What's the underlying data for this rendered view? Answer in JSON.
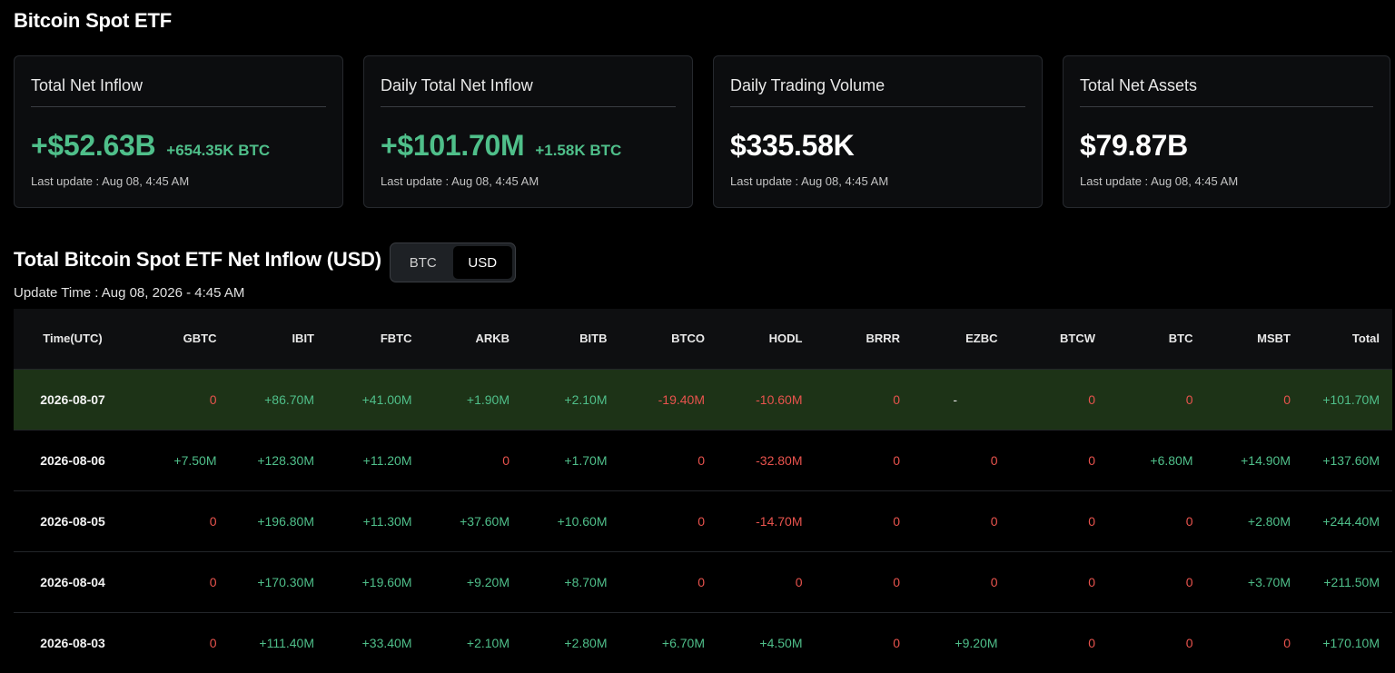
{
  "page": {
    "title": "Bitcoin Spot ETF"
  },
  "cards": [
    {
      "title": "Total Net Inflow",
      "value": "+$52.63B",
      "sub": "+654.35K BTC",
      "update": "Last update : Aug 08, 4:45 AM",
      "positive": true
    },
    {
      "title": "Daily Total Net Inflow",
      "value": "+$101.70M",
      "sub": "+1.58K BTC",
      "update": "Last update : Aug 08, 4:45 AM",
      "positive": true
    },
    {
      "title": "Daily Trading Volume",
      "value": "$335.58K",
      "sub": "",
      "update": "Last update : Aug 08, 4:45 AM",
      "positive": false
    },
    {
      "title": "Total Net Assets",
      "value": "$79.87B",
      "sub": "",
      "update": "Last update : Aug 08, 4:45 AM",
      "positive": false
    }
  ],
  "section": {
    "title": "Total Bitcoin Spot ETF Net Inflow (USD)",
    "update_time": "Update Time : Aug 08, 2026 - 4:45 AM",
    "toggle": {
      "options": [
        "BTC",
        "USD"
      ],
      "selected": "USD"
    }
  },
  "table": {
    "headers": [
      "Time(UTC)",
      "GBTC",
      "IBIT",
      "FBTC",
      "ARKB",
      "BITB",
      "BTCO",
      "HODL",
      "BRRR",
      "EZBC",
      "BTCW",
      "BTC",
      "MSBT",
      "Total"
    ],
    "rows": [
      [
        "2026-08-07",
        "0",
        "+86.70M",
        "+41.00M",
        "+1.90M",
        "+2.10M",
        "-19.40M",
        "-10.60M",
        "0",
        "-",
        "0",
        "0",
        "0",
        "+101.70M"
      ],
      [
        "2026-08-06",
        "+7.50M",
        "+128.30M",
        "+11.20M",
        "0",
        "+1.70M",
        "0",
        "-32.80M",
        "0",
        "0",
        "0",
        "+6.80M",
        "+14.90M",
        "+137.60M"
      ],
      [
        "2026-08-05",
        "0",
        "+196.80M",
        "+11.30M",
        "+37.60M",
        "+10.60M",
        "0",
        "-14.70M",
        "0",
        "0",
        "0",
        "0",
        "+2.80M",
        "+244.40M"
      ],
      [
        "2026-08-04",
        "0",
        "+170.30M",
        "+19.60M",
        "+9.20M",
        "+8.70M",
        "0",
        "0",
        "0",
        "0",
        "0",
        "0",
        "+3.70M",
        "+211.50M"
      ],
      [
        "2026-08-03",
        "0",
        "+111.40M",
        "+33.40M",
        "+2.10M",
        "+2.80M",
        "+6.70M",
        "+4.50M",
        "0",
        "+9.20M",
        "0",
        "0",
        "0",
        "+170.10M"
      ]
    ],
    "highlight_row": 0
  },
  "colors": {
    "positive": "#4fbf8a",
    "negative": "#e8534d",
    "highlight_row_bg": "#1d3317",
    "background": "#000000"
  }
}
